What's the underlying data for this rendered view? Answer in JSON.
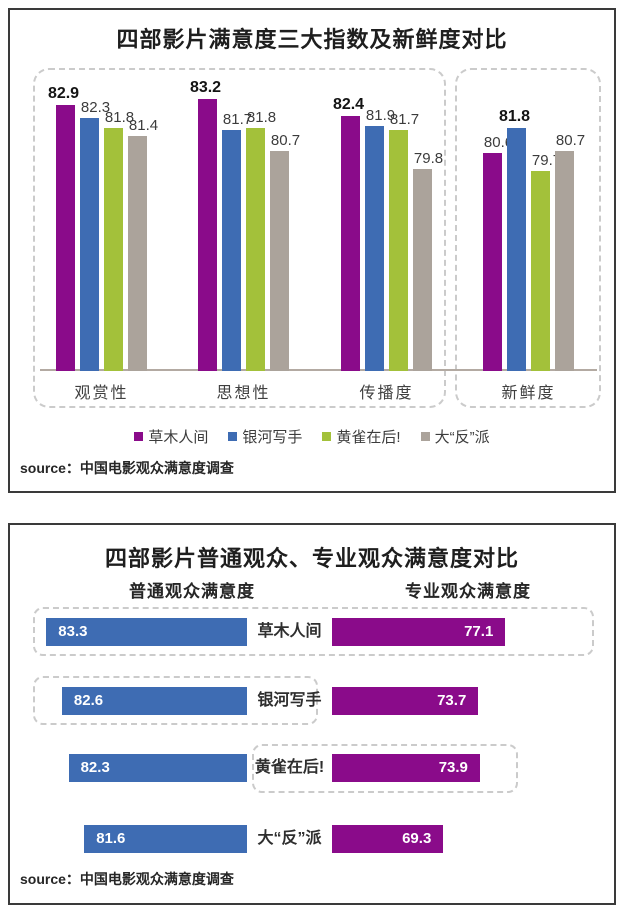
{
  "colors": {
    "purple": "#8a0b8a",
    "blue": "#3e6cb3",
    "green": "#a3c13a",
    "gray": "#aba39b",
    "axis": "#b3aaa2",
    "dashed_border": "#cbcbcb"
  },
  "chart_data": [
    {
      "type": "bar",
      "title": "四部影片满意度三大指数及新鲜度对比",
      "categories": [
        "观赏性",
        "思想性",
        "传播度",
        "新鲜度"
      ],
      "series": [
        {
          "name": "草木人间",
          "color": "#8a0b8a",
          "values": [
            82.9,
            83.2,
            82.4,
            80.6
          ]
        },
        {
          "name": "银河写手",
          "color": "#3e6cb3",
          "values": [
            82.3,
            81.7,
            81.9,
            81.8
          ]
        },
        {
          "name": "黄雀在后!",
          "color": "#a3c13a",
          "values": [
            81.8,
            81.8,
            81.7,
            79.7
          ]
        },
        {
          "name": "大“反”派",
          "color": "#aba39b",
          "values": [
            81.4,
            80.7,
            79.8,
            80.7
          ]
        }
      ],
      "bold_value_per_group": [
        82.9,
        83.2,
        82.4,
        81.8
      ],
      "ylim": [
        70,
        84
      ],
      "grid": false,
      "legend_position": "bottom",
      "source": "source：中国电影观众满意度调查"
    },
    {
      "type": "bar",
      "orientation": "horizontal",
      "title": "四部影片普通观众、专业观众满意度对比",
      "categories": [
        "草木人间",
        "银河写手",
        "黄雀在后!",
        "大“反”派"
      ],
      "series": [
        {
          "name": "普通观众满意度",
          "color": "#3e6cb3",
          "values": [
            83.3,
            82.6,
            82.3,
            81.6
          ]
        },
        {
          "name": "专业观众满意度",
          "color": "#8a0b8a",
          "values": [
            77.1,
            73.7,
            73.9,
            69.3
          ]
        }
      ],
      "grid": false,
      "source": "source：中国电影观众满意度调查"
    }
  ]
}
